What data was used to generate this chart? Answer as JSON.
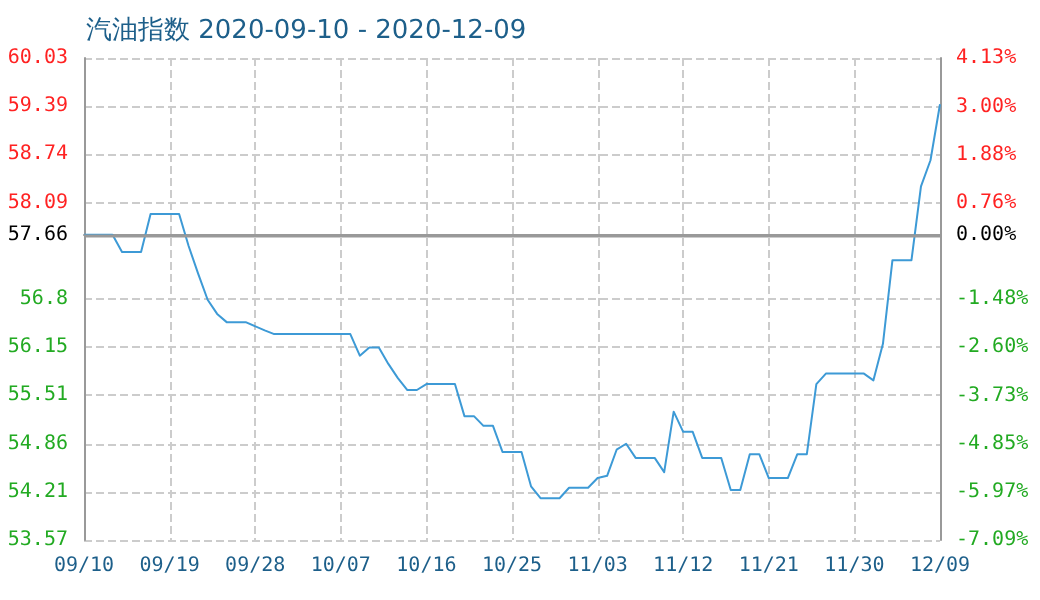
{
  "chart_data": {
    "type": "line",
    "title": "汽油指数 2020-09-10 - 2020-12-09",
    "x": [
      "2020-09-10",
      "2020-09-13",
      "2020-09-14",
      "2020-09-16",
      "2020-09-17",
      "2020-09-20",
      "2020-09-21",
      "2020-09-22",
      "2020-09-23",
      "2020-09-24",
      "2020-09-25",
      "2020-09-27",
      "2020-09-29",
      "2020-09-30",
      "2020-10-08",
      "2020-10-09",
      "2020-10-10",
      "2020-10-11",
      "2020-10-12",
      "2020-10-13",
      "2020-10-14",
      "2020-10-15",
      "2020-10-16",
      "2020-10-19",
      "2020-10-20",
      "2020-10-21",
      "2020-10-22",
      "2020-10-23",
      "2020-10-24",
      "2020-10-26",
      "2020-10-27",
      "2020-10-28",
      "2020-10-30",
      "2020-10-31",
      "2020-11-02",
      "2020-11-03",
      "2020-11-04",
      "2020-11-05",
      "2020-11-06",
      "2020-11-07",
      "2020-11-09",
      "2020-11-10",
      "2020-11-11",
      "2020-11-12",
      "2020-11-13",
      "2020-11-14",
      "2020-11-16",
      "2020-11-17",
      "2020-11-18",
      "2020-11-19",
      "2020-11-20",
      "2020-11-21",
      "2020-11-23",
      "2020-11-24",
      "2020-11-25",
      "2020-11-26",
      "2020-11-27",
      "2020-12-01",
      "2020-12-02",
      "2020-12-03",
      "2020-12-04",
      "2020-12-06",
      "2020-12-07",
      "2020-12-08",
      "2020-12-09"
    ],
    "series": [
      {
        "color": "#3d9ad6",
        "values": [
          57.66,
          57.66,
          57.43,
          57.43,
          57.94,
          57.94,
          57.51,
          57.14,
          56.79,
          56.6,
          56.49,
          56.49,
          56.38,
          56.33,
          56.33,
          56.04,
          56.15,
          56.15,
          55.93,
          55.74,
          55.58,
          55.58,
          55.66,
          55.66,
          55.23,
          55.23,
          55.1,
          55.1,
          54.75,
          54.75,
          54.29,
          54.13,
          54.13,
          54.27,
          54.27,
          54.4,
          54.43,
          54.78,
          54.86,
          54.67,
          54.67,
          54.48,
          55.29,
          55.02,
          55.02,
          54.67,
          54.67,
          54.24,
          54.24,
          54.72,
          54.72,
          54.4,
          54.4,
          54.72,
          54.72,
          55.66,
          55.8,
          55.8,
          55.71,
          56.2,
          57.32,
          57.32,
          58.31,
          58.66,
          59.41
        ]
      }
    ],
    "xlim": [
      "2020-09-10",
      "2020-12-09"
    ],
    "xticks": [
      {
        "value": "2020-09-10",
        "label": "09/10"
      },
      {
        "value": "2020-09-19",
        "label": "09/19"
      },
      {
        "value": "2020-09-28",
        "label": "09/28"
      },
      {
        "value": "2020-10-07",
        "label": "10/07"
      },
      {
        "value": "2020-10-16",
        "label": "10/16"
      },
      {
        "value": "2020-10-25",
        "label": "10/25"
      },
      {
        "value": "2020-11-03",
        "label": "11/03"
      },
      {
        "value": "2020-11-12",
        "label": "11/12"
      },
      {
        "value": "2020-11-21",
        "label": "11/21"
      },
      {
        "value": "2020-11-30",
        "label": "11/30"
      },
      {
        "value": "2020-12-09",
        "label": "12/09"
      }
    ],
    "ylim": [
      53.57,
      60.03
    ],
    "yticks": [
      53.57,
      54.21,
      54.86,
      55.51,
      56.15,
      56.8,
      57.66,
      58.09,
      58.74,
      59.39,
      60.03
    ],
    "y2lim": [
      -7.09,
      4.13
    ],
    "y2ticks": [
      {
        "value": -7.09,
        "label": "-7.09%"
      },
      {
        "value": -5.97,
        "label": "-5.97%"
      },
      {
        "value": -4.85,
        "label": "-4.85%"
      },
      {
        "value": -3.73,
        "label": "-3.73%"
      },
      {
        "value": -2.6,
        "label": "-2.60%"
      },
      {
        "value": -1.48,
        "label": "-1.48%"
      },
      {
        "value": 0,
        "label": "0.00%"
      },
      {
        "value": 0.76,
        "label": "0.76%"
      },
      {
        "value": 1.88,
        "label": "1.88%"
      },
      {
        "value": 3,
        "label": "3.00%"
      },
      {
        "value": 4.13,
        "label": "4.13%"
      }
    ],
    "ref_lines": [
      {
        "axis": "y",
        "value": 57.66,
        "color": "#999999"
      }
    ],
    "grid": true,
    "line_style": "solid",
    "marker": "none"
  }
}
